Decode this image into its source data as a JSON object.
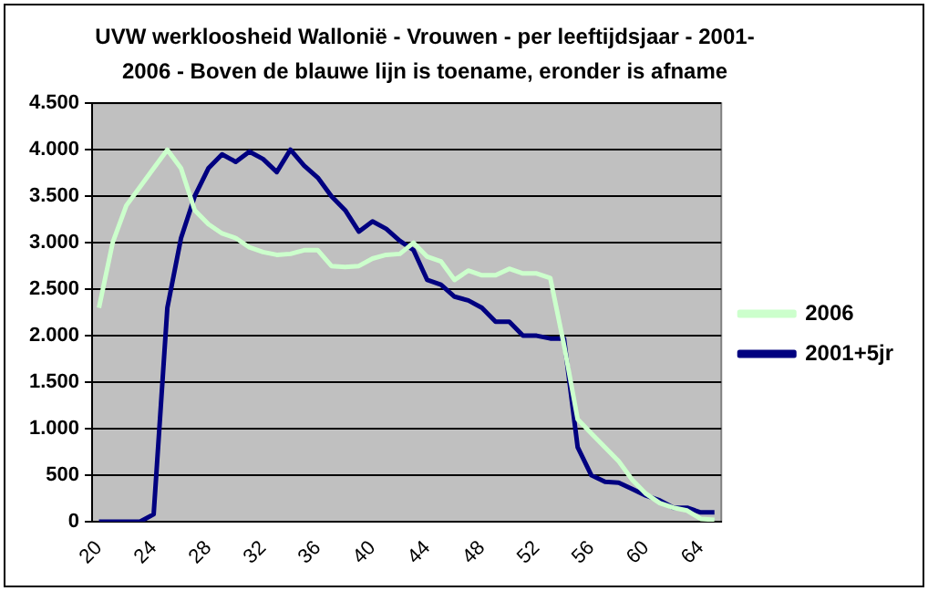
{
  "chart_data": {
    "type": "line",
    "title": "UVW werkloosheid Wallonië - Vrouwen - per leeftijdsjaar - 2001-2006  - Boven de blauwe lijn is toename, eronder is afname",
    "categories": [
      "20",
      null,
      null,
      null,
      "24",
      null,
      null,
      null,
      "28",
      null,
      null,
      null,
      "32",
      null,
      null,
      null,
      "36",
      null,
      null,
      null,
      "40",
      null,
      null,
      null,
      "44",
      null,
      null,
      null,
      "48",
      null,
      null,
      null,
      "52",
      null,
      null,
      null,
      "56",
      null,
      null,
      null,
      "60",
      null,
      null,
      null,
      "64",
      null
    ],
    "series": [
      {
        "name": "2006",
        "color": "#ccffcc",
        "values": [
          2300,
          3000,
          3400,
          3600,
          3800,
          4000,
          3800,
          3350,
          3200,
          3100,
          3050,
          2950,
          2900,
          2870,
          2880,
          2920,
          2920,
          2750,
          2740,
          2750,
          2830,
          2870,
          2880,
          3000,
          2850,
          2800,
          2600,
          2700,
          2650,
          2650,
          2720,
          2670,
          2670,
          2620,
          1900,
          1100,
          950,
          800,
          650,
          450,
          300,
          200,
          150,
          120,
          30,
          20
        ]
      },
      {
        "name": "2001+5jr",
        "color": "#000080",
        "values": [
          0,
          0,
          0,
          0,
          80,
          2300,
          3050,
          3500,
          3800,
          3950,
          3870,
          3980,
          3900,
          3760,
          4000,
          3830,
          3700,
          3500,
          3350,
          3120,
          3230,
          3150,
          3020,
          2920,
          2600,
          2550,
          2420,
          2380,
          2300,
          2150,
          2150,
          2000,
          2000,
          1970,
          1970,
          800,
          500,
          430,
          420,
          350,
          280,
          230,
          150,
          150,
          100,
          100
        ]
      }
    ],
    "ylim": [
      0,
      4500
    ],
    "yticks": [
      {
        "value": 0,
        "label": "0"
      },
      {
        "value": 500,
        "label": "500"
      },
      {
        "value": 1000,
        "label": "1.000"
      },
      {
        "value": 1500,
        "label": "1.500"
      },
      {
        "value": 2000,
        "label": "2.000"
      },
      {
        "value": 2500,
        "label": "2.500"
      },
      {
        "value": 3000,
        "label": "3.000"
      },
      {
        "value": 3500,
        "label": "3.500"
      },
      {
        "value": 4000,
        "label": "4.000"
      },
      {
        "value": 4500,
        "label": "4.500"
      }
    ],
    "grid": "y",
    "legend": "right",
    "marker": "none"
  }
}
